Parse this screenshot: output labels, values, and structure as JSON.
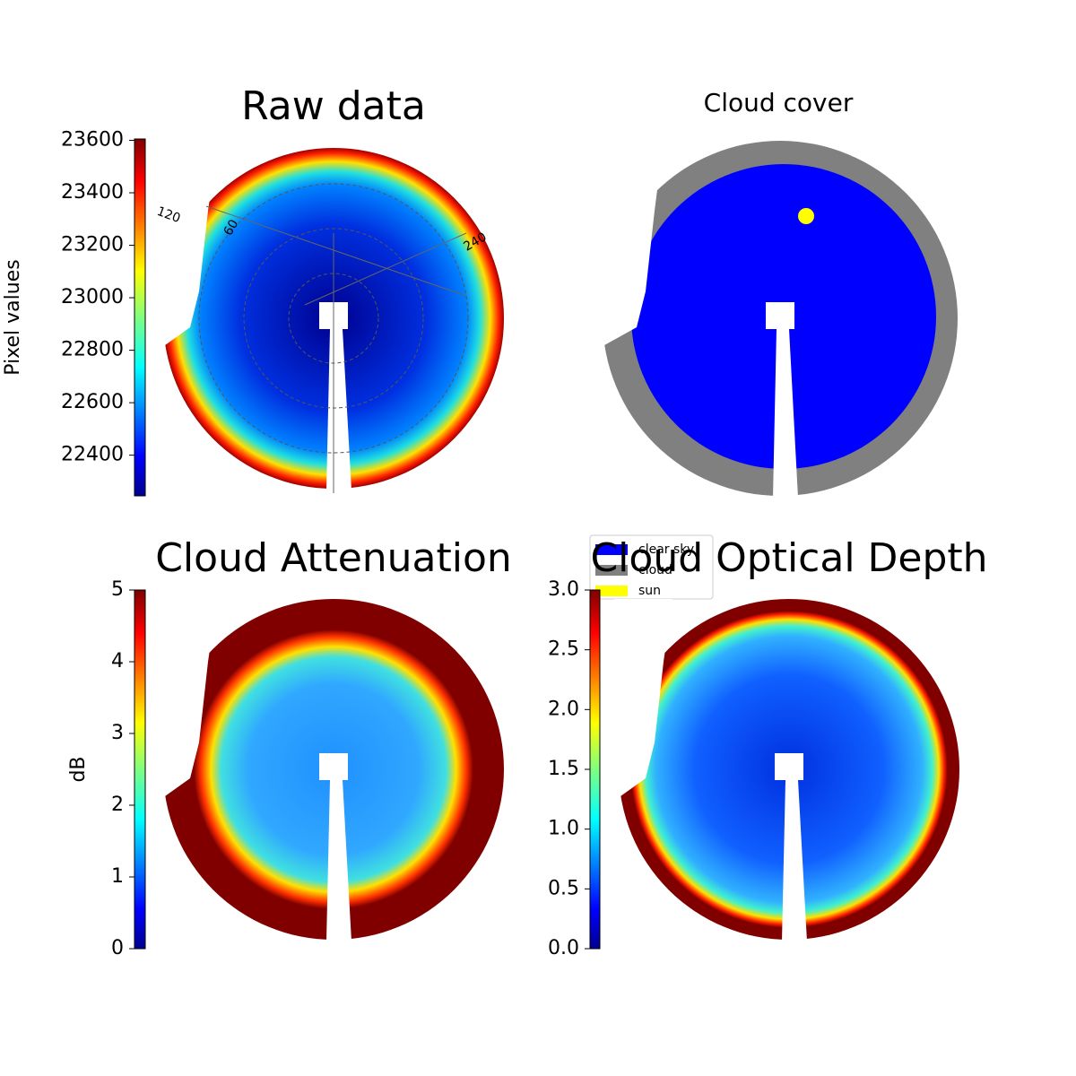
{
  "chart_data": [
    {
      "type": "image",
      "title": "Raw data",
      "colormap": "jet",
      "colorbar_label": "Pixel values",
      "ylim": [
        22245,
        23605
      ],
      "yticks": [
        22400,
        22600,
        22800,
        23000,
        23200,
        23400,
        23600
      ],
      "annotations": [
        "120",
        "60",
        "240"
      ]
    },
    {
      "type": "image",
      "title": "Cloud cover",
      "legend_loc": "lower left",
      "series": [
        {
          "name": "clear sky",
          "color": "#0000ff"
        },
        {
          "name": "cloud",
          "color": "#808080"
        },
        {
          "name": "sun",
          "color": "#ffff00"
        }
      ]
    },
    {
      "type": "image",
      "title": "Cloud Attenuation",
      "colormap": "jet",
      "colorbar_label": "dB",
      "ylim": [
        0,
        5
      ],
      "yticks": [
        0,
        1,
        2,
        3,
        4,
        5
      ]
    },
    {
      "type": "image",
      "title": "Cloud Optical Depth",
      "colormap": "jet",
      "ylim": [
        0,
        3
      ],
      "yticks": [
        {
          "value": 0,
          "label": "0.0"
        },
        {
          "value": 0.5,
          "label": "0.5"
        },
        {
          "value": 1,
          "label": "1.0"
        },
        1.5,
        {
          "value": 2,
          "label": "2.0"
        },
        2.5,
        {
          "value": 3,
          "label": "3.0"
        }
      ]
    }
  ]
}
